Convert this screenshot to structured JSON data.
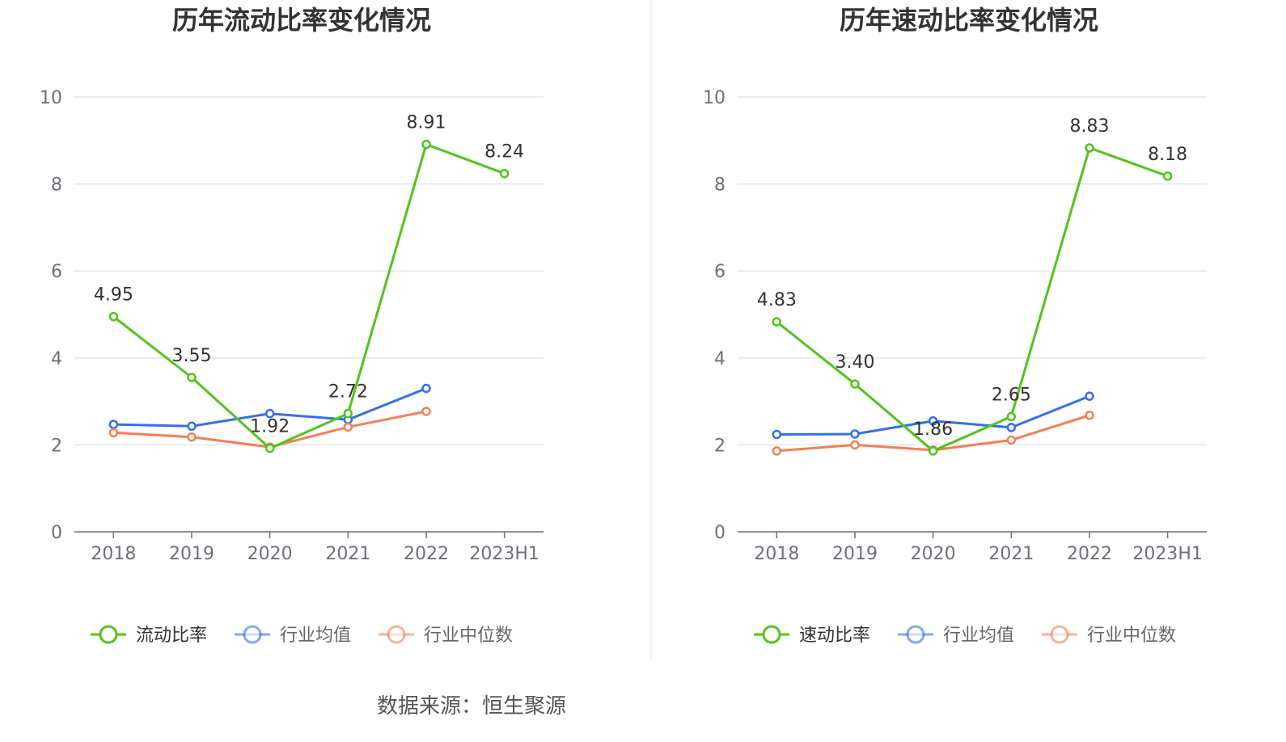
{
  "chart_data": [
    {
      "type": "line",
      "title": "历年流动比率变化情况",
      "categories": [
        "2018",
        "2019",
        "2020",
        "2021",
        "2022",
        "2023H1"
      ],
      "ylim": [
        0,
        10
      ],
      "yticks": [
        "0",
        "2",
        "4",
        "6",
        "8",
        "10"
      ],
      "grid": true,
      "legend_position": "bottom",
      "series": [
        {
          "name": "流动比率",
          "color": "#52c41a",
          "values": [
            4.95,
            3.55,
            1.92,
            2.72,
            8.91,
            8.24
          ],
          "labels": [
            "4.95",
            "3.55",
            "1.92",
            "2.72",
            "8.91",
            "8.24"
          ]
        },
        {
          "name": "行业均值",
          "color": "#3370eb",
          "values": [
            2.47,
            2.43,
            2.72,
            2.58,
            3.3,
            null
          ]
        },
        {
          "name": "行业中位数",
          "color": "#f47f55",
          "values": [
            2.28,
            2.18,
            1.95,
            2.41,
            2.77,
            null
          ]
        }
      ]
    },
    {
      "type": "line",
      "title": "历年速动比率变化情况",
      "categories": [
        "2018",
        "2019",
        "2020",
        "2021",
        "2022",
        "2023H1"
      ],
      "ylim": [
        0,
        10
      ],
      "yticks": [
        "0",
        "2",
        "4",
        "6",
        "8",
        "10"
      ],
      "grid": true,
      "legend_position": "bottom",
      "series": [
        {
          "name": "速动比率",
          "color": "#52c41a",
          "values": [
            4.83,
            3.4,
            1.86,
            2.65,
            8.83,
            8.18
          ],
          "labels": [
            "4.83",
            "3.40",
            "1.86",
            "2.65",
            "8.83",
            "8.18"
          ]
        },
        {
          "name": "行业均值",
          "color": "#3370eb",
          "values": [
            2.24,
            2.25,
            2.55,
            2.4,
            3.12,
            null
          ]
        },
        {
          "name": "行业中位数",
          "color": "#f47f55",
          "values": [
            1.86,
            2.0,
            1.88,
            2.11,
            2.68,
            null
          ]
        }
      ]
    }
  ],
  "source": "数据来源：恒生聚源"
}
